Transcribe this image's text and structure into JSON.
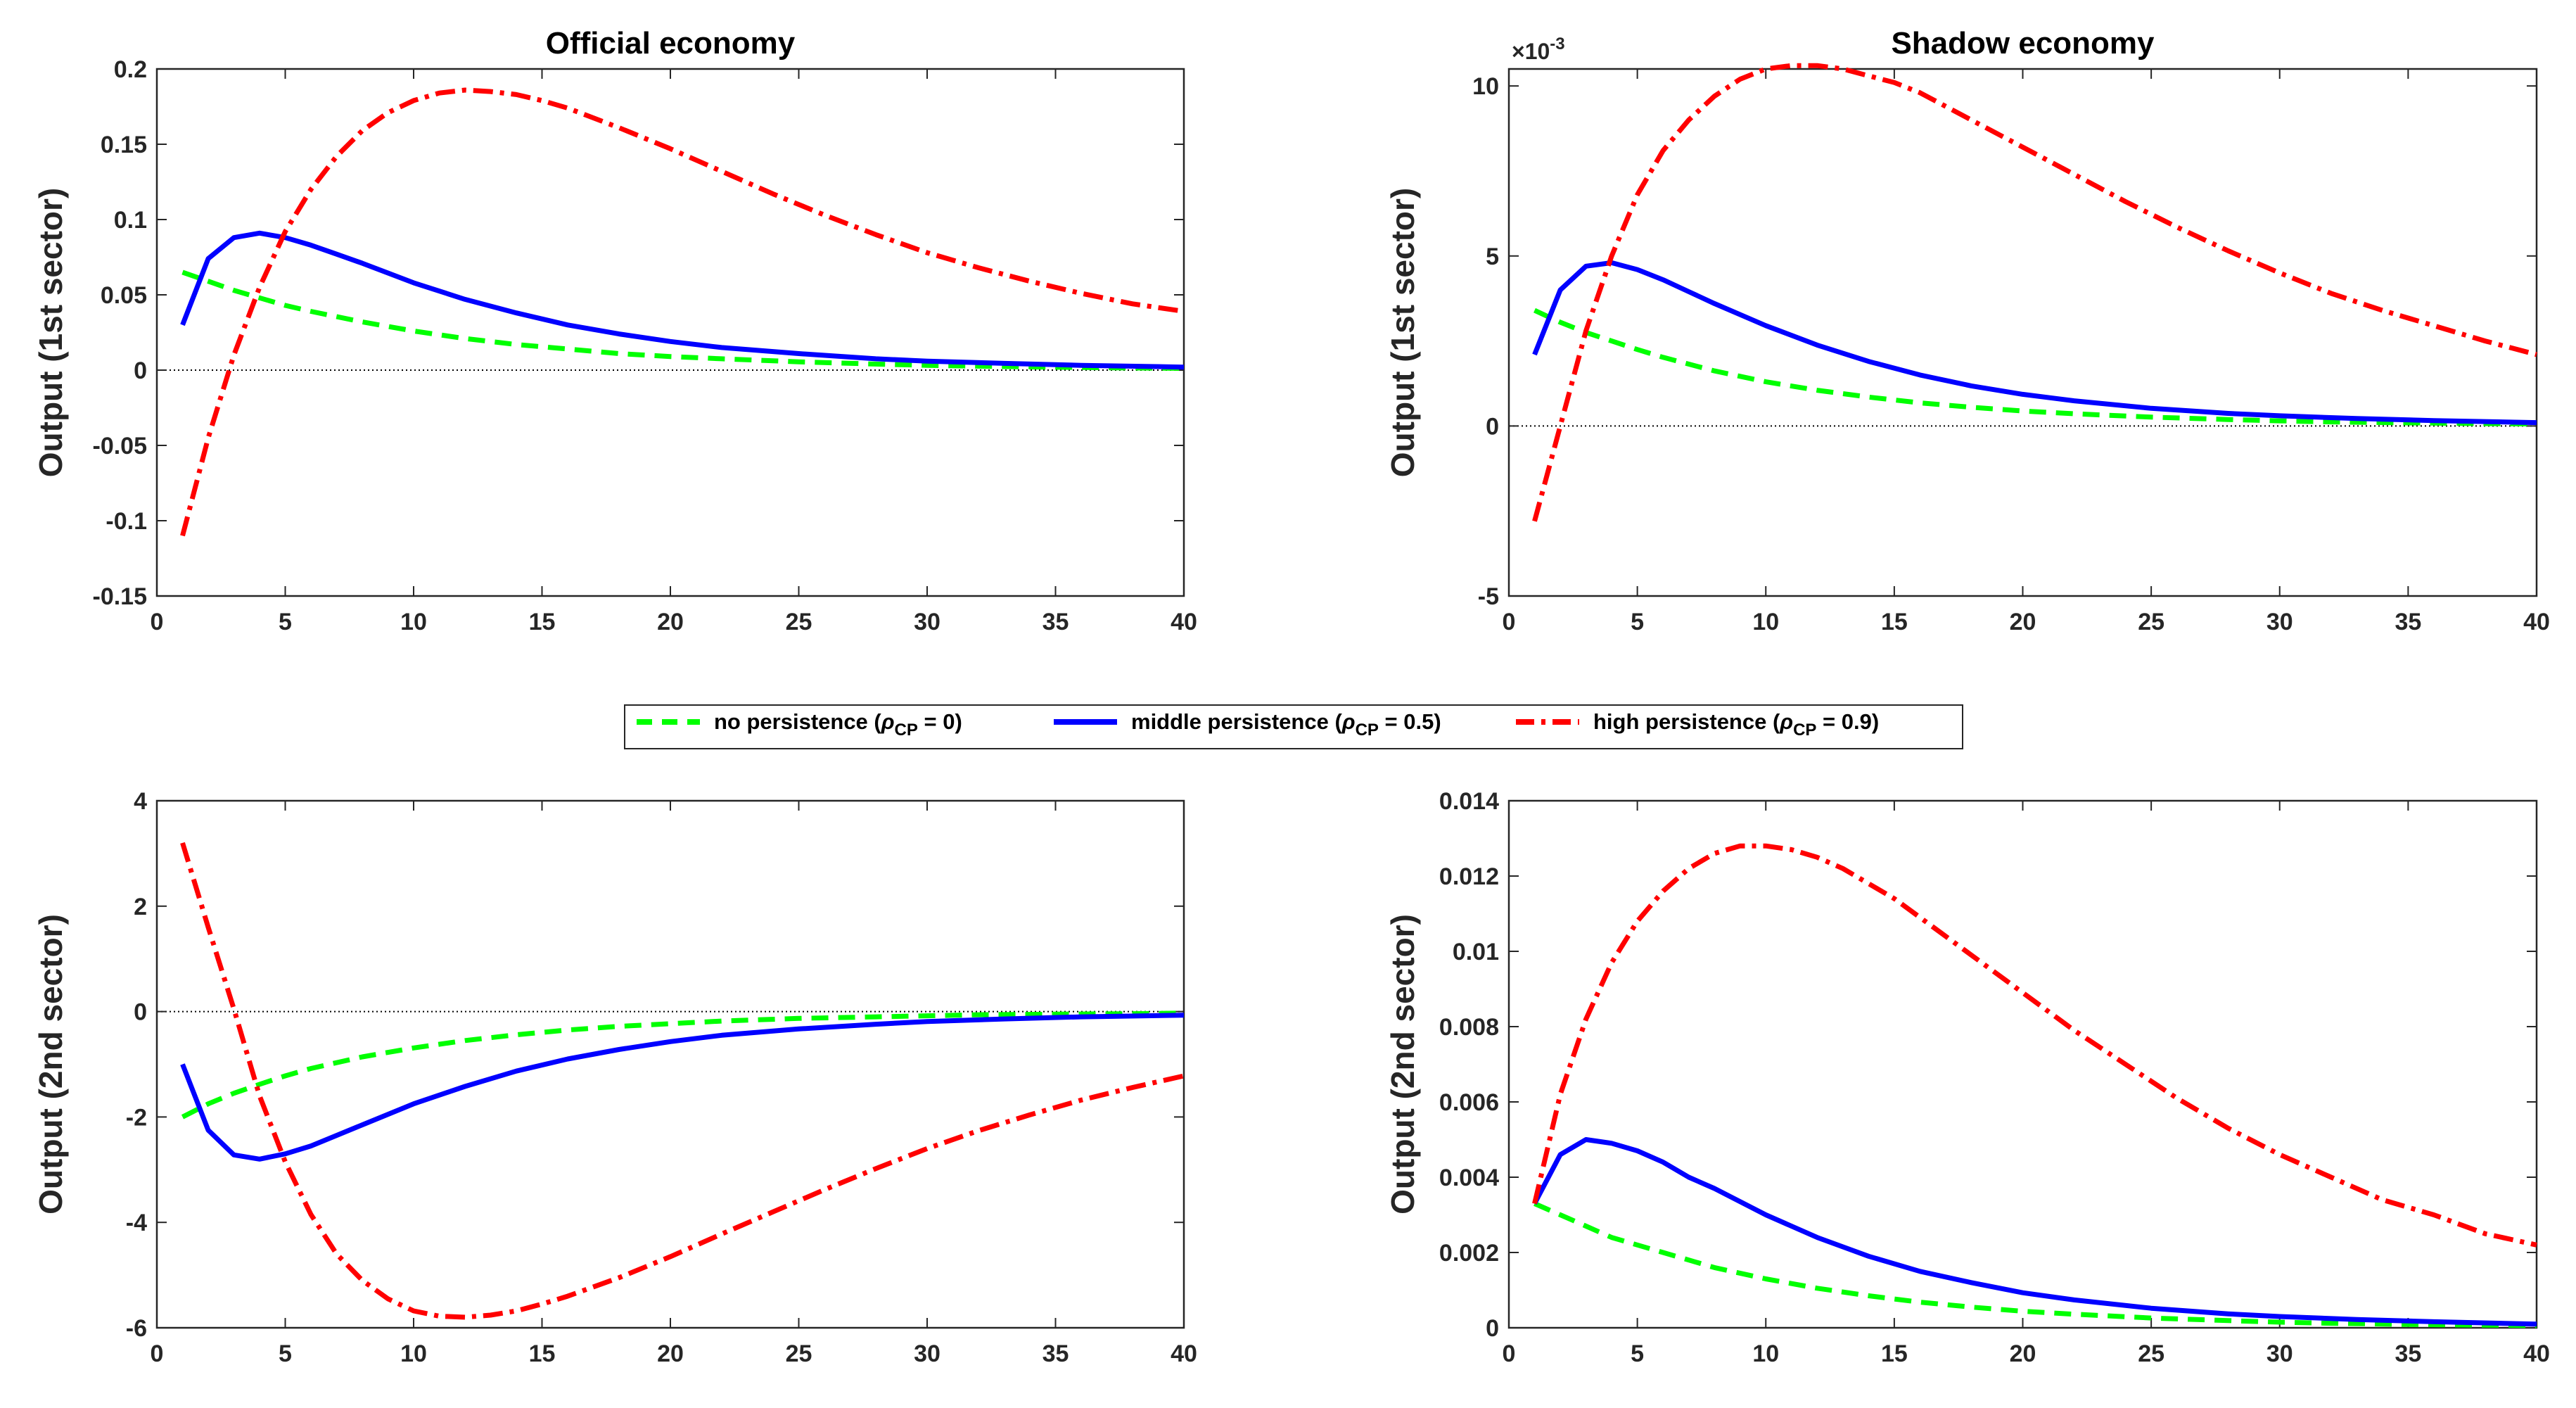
{
  "figure": {
    "legend": {
      "entries": [
        {
          "prefix": "no persistence (",
          "rho": "ρ",
          "sub": "CP",
          "suffix": " = 0)",
          "color": "#00ff00",
          "style": "dashed"
        },
        {
          "prefix": "middle persistence (",
          "rho": "ρ",
          "sub": "CP",
          "suffix": " = 0.5)",
          "color": "#0000ff",
          "style": "solid"
        },
        {
          "prefix": "high persistence (",
          "rho": "ρ",
          "sub": "CP",
          "suffix": " = 0.9)",
          "color": "#ff0000",
          "style": "dashdot"
        }
      ]
    }
  },
  "chart_data": [
    {
      "type": "line",
      "title": "Official economy",
      "ylabel": "Output (1st sector)",
      "xlim": [
        0,
        40
      ],
      "ylim": [
        -0.15,
        0.2
      ],
      "xticks": [
        0,
        5,
        10,
        15,
        20,
        25,
        30,
        35,
        40
      ],
      "xticklabels": [
        "0",
        "5",
        "10",
        "15",
        "20",
        "25",
        "30",
        "35",
        "40"
      ],
      "yticks": [
        -0.15,
        -0.1,
        -0.05,
        0,
        0.05,
        0.1,
        0.15,
        0.2
      ],
      "yticklabels": [
        "-0.15",
        "-0.1",
        "-0.05",
        "0",
        "0.05",
        "0.1",
        "0.15",
        "0.2"
      ],
      "exponent": "",
      "zero_line": true,
      "series": [
        {
          "name": "no persistence",
          "color": "#00ff00",
          "style": "dashed",
          "x": [
            1,
            2,
            3,
            4,
            5,
            6,
            8,
            10,
            12,
            14,
            16,
            18,
            20,
            22,
            25,
            28,
            30,
            32,
            35,
            38,
            40
          ],
          "values": [
            0.065,
            0.059,
            0.053,
            0.048,
            0.043,
            0.039,
            0.032,
            0.026,
            0.021,
            0.017,
            0.014,
            0.011,
            0.009,
            0.0075,
            0.0055,
            0.004,
            0.0032,
            0.0026,
            0.0019,
            0.0014,
            0.0012
          ]
        },
        {
          "name": "middle persistence",
          "color": "#0000ff",
          "style": "solid",
          "x": [
            1,
            2,
            3,
            4,
            5,
            6,
            7,
            8,
            10,
            12,
            14,
            16,
            18,
            20,
            22,
            25,
            28,
            30,
            33,
            36,
            40
          ],
          "values": [
            0.03,
            0.074,
            0.088,
            0.091,
            0.088,
            0.083,
            0.077,
            0.071,
            0.058,
            0.047,
            0.038,
            0.03,
            0.024,
            0.019,
            0.015,
            0.011,
            0.0075,
            0.006,
            0.0045,
            0.0032,
            0.002
          ]
        },
        {
          "name": "high persistence",
          "color": "#ff0000",
          "style": "dashdot",
          "x": [
            1,
            2,
            3,
            4,
            5,
            6,
            7,
            8,
            9,
            10,
            11,
            12,
            13,
            14,
            15,
            16,
            18,
            20,
            22,
            24,
            26,
            28,
            30,
            32,
            34,
            36,
            38,
            40
          ],
          "values": [
            -0.11,
            -0.045,
            0.01,
            0.055,
            0.092,
            0.12,
            0.142,
            0.159,
            0.171,
            0.179,
            0.184,
            0.186,
            0.185,
            0.183,
            0.179,
            0.174,
            0.161,
            0.147,
            0.132,
            0.117,
            0.103,
            0.09,
            0.078,
            0.068,
            0.059,
            0.051,
            0.044,
            0.039
          ]
        }
      ]
    },
    {
      "type": "line",
      "title": "Shadow economy",
      "ylabel": "Output (1st sector)",
      "xlim": [
        0,
        40
      ],
      "ylim": [
        -5,
        10.5
      ],
      "xticks": [
        0,
        5,
        10,
        15,
        20,
        25,
        30,
        35,
        40
      ],
      "xticklabels": [
        "0",
        "5",
        "10",
        "15",
        "20",
        "25",
        "30",
        "35",
        "40"
      ],
      "yticks": [
        -5,
        0,
        5,
        10
      ],
      "yticklabels": [
        "-5",
        "0",
        "5",
        "10"
      ],
      "exponent": "×10",
      "exponent_power": "-3",
      "zero_line": true,
      "series": [
        {
          "name": "no persistence",
          "color": "#00ff00",
          "style": "dashed",
          "x": [
            1,
            2,
            3,
            4,
            5,
            6,
            8,
            10,
            12,
            14,
            16,
            18,
            20,
            22,
            25,
            28,
            30,
            32,
            35,
            38,
            40
          ],
          "values": [
            3.4,
            3.05,
            2.75,
            2.5,
            2.25,
            2.02,
            1.62,
            1.3,
            1.05,
            0.85,
            0.68,
            0.55,
            0.44,
            0.36,
            0.26,
            0.19,
            0.15,
            0.12,
            0.09,
            0.07,
            0.06
          ]
        },
        {
          "name": "middle persistence",
          "color": "#0000ff",
          "style": "solid",
          "x": [
            1,
            2,
            3,
            4,
            5,
            6,
            7,
            8,
            10,
            12,
            14,
            16,
            18,
            20,
            22,
            25,
            28,
            30,
            33,
            36,
            40
          ],
          "values": [
            2.1,
            4.0,
            4.7,
            4.8,
            4.6,
            4.3,
            3.95,
            3.6,
            2.95,
            2.38,
            1.9,
            1.5,
            1.18,
            0.93,
            0.74,
            0.52,
            0.37,
            0.3,
            0.22,
            0.16,
            0.1
          ]
        },
        {
          "name": "high persistence",
          "color": "#ff0000",
          "style": "dashdot",
          "x": [
            1,
            2,
            3,
            4,
            5,
            6,
            7,
            8,
            9,
            10,
            11,
            12,
            13,
            14,
            15,
            16,
            18,
            20,
            22,
            24,
            26,
            28,
            30,
            32,
            34,
            36,
            38,
            40
          ],
          "values": [
            -2.8,
            0.0,
            2.8,
            5.0,
            6.8,
            8.1,
            9.0,
            9.7,
            10.2,
            10.5,
            10.6,
            10.6,
            10.5,
            10.3,
            10.1,
            9.8,
            9.0,
            8.2,
            7.4,
            6.6,
            5.85,
            5.15,
            4.5,
            3.9,
            3.4,
            2.95,
            2.5,
            2.1
          ]
        }
      ]
    },
    {
      "type": "line",
      "title": "",
      "ylabel": "Output (2nd sector)",
      "xlim": [
        0,
        40
      ],
      "ylim": [
        -6,
        4
      ],
      "xticks": [
        0,
        5,
        10,
        15,
        20,
        25,
        30,
        35,
        40
      ],
      "xticklabels": [
        "0",
        "5",
        "10",
        "15",
        "20",
        "25",
        "30",
        "35",
        "40"
      ],
      "yticks": [
        -6,
        -4,
        -2,
        0,
        2,
        4
      ],
      "yticklabels": [
        "-6",
        "-4",
        "-2",
        "0",
        "2",
        "4"
      ],
      "exponent": "",
      "zero_line": true,
      "series": [
        {
          "name": "no persistence",
          "color": "#00ff00",
          "style": "dashed",
          "x": [
            1,
            2,
            3,
            4,
            5,
            6,
            8,
            10,
            12,
            14,
            16,
            18,
            20,
            22,
            25,
            28,
            30,
            32,
            35,
            38,
            40
          ],
          "values": [
            -2.0,
            -1.75,
            -1.55,
            -1.38,
            -1.22,
            -1.08,
            -0.86,
            -0.69,
            -0.55,
            -0.44,
            -0.35,
            -0.28,
            -0.23,
            -0.18,
            -0.13,
            -0.1,
            -0.08,
            -0.06,
            -0.05,
            -0.04,
            -0.03
          ]
        },
        {
          "name": "middle persistence",
          "color": "#0000ff",
          "style": "solid",
          "x": [
            1,
            2,
            3,
            4,
            5,
            6,
            7,
            8,
            10,
            12,
            14,
            16,
            18,
            20,
            22,
            25,
            28,
            30,
            33,
            36,
            40
          ],
          "values": [
            -1.0,
            -2.25,
            -2.72,
            -2.8,
            -2.7,
            -2.55,
            -2.35,
            -2.15,
            -1.75,
            -1.42,
            -1.13,
            -0.9,
            -0.72,
            -0.57,
            -0.45,
            -0.33,
            -0.24,
            -0.19,
            -0.14,
            -0.1,
            -0.07
          ]
        },
        {
          "name": "high persistence",
          "color": "#ff0000",
          "style": "dashdot",
          "x": [
            1,
            2,
            3,
            4,
            5,
            6,
            7,
            8,
            9,
            10,
            11,
            12,
            13,
            14,
            15,
            16,
            18,
            20,
            22,
            24,
            26,
            28,
            30,
            32,
            34,
            36,
            38,
            40
          ],
          "values": [
            3.2,
            1.6,
            0.05,
            -1.6,
            -2.85,
            -3.85,
            -4.6,
            -5.1,
            -5.45,
            -5.68,
            -5.78,
            -5.8,
            -5.76,
            -5.68,
            -5.55,
            -5.4,
            -5.05,
            -4.65,
            -4.22,
            -3.8,
            -3.38,
            -2.98,
            -2.6,
            -2.26,
            -1.96,
            -1.68,
            -1.44,
            -1.22
          ]
        }
      ]
    },
    {
      "type": "line",
      "title": "",
      "ylabel": "Output (2nd sector)",
      "xlim": [
        0,
        40
      ],
      "ylim": [
        0,
        0.014
      ],
      "xticks": [
        0,
        5,
        10,
        15,
        20,
        25,
        30,
        35,
        40
      ],
      "xticklabels": [
        "0",
        "5",
        "10",
        "15",
        "20",
        "25",
        "30",
        "35",
        "40"
      ],
      "yticks": [
        0,
        0.002,
        0.004,
        0.006,
        0.008,
        0.01,
        0.012,
        0.014
      ],
      "yticklabels": [
        "0",
        "0.002",
        "0.004",
        "0.006",
        "0.008",
        "0.01",
        "0.012",
        "0.014"
      ],
      "exponent": "",
      "zero_line": false,
      "series": [
        {
          "name": "no persistence",
          "color": "#00ff00",
          "style": "dashed",
          "x": [
            1,
            2,
            3,
            4,
            5,
            6,
            8,
            10,
            12,
            14,
            16,
            18,
            20,
            22,
            25,
            28,
            30,
            32,
            35,
            38,
            40
          ],
          "values": [
            0.0033,
            0.003,
            0.0027,
            0.0024,
            0.0022,
            0.002,
            0.0016,
            0.0013,
            0.00105,
            0.00085,
            0.00068,
            0.00055,
            0.00044,
            0.00036,
            0.00026,
            0.00019,
            0.00015,
            0.00012,
            9e-05,
            7e-05,
            6e-05
          ]
        },
        {
          "name": "middle persistence",
          "color": "#0000ff",
          "style": "solid",
          "x": [
            1,
            2,
            3,
            4,
            5,
            6,
            7,
            8,
            10,
            12,
            14,
            16,
            18,
            20,
            22,
            25,
            28,
            30,
            33,
            36,
            40
          ],
          "values": [
            0.0033,
            0.0046,
            0.005,
            0.0049,
            0.0047,
            0.0044,
            0.004,
            0.0037,
            0.003,
            0.0024,
            0.0019,
            0.0015,
            0.0012,
            0.00093,
            0.00074,
            0.00052,
            0.00037,
            0.0003,
            0.00022,
            0.00016,
            0.0001
          ]
        },
        {
          "name": "high persistence",
          "color": "#ff0000",
          "style": "dashdot",
          "x": [
            1,
            2,
            3,
            4,
            5,
            6,
            7,
            8,
            9,
            10,
            11,
            12,
            13,
            14,
            15,
            16,
            18,
            20,
            22,
            24,
            26,
            28,
            30,
            32,
            34,
            36,
            38,
            40
          ],
          "values": [
            0.0033,
            0.0062,
            0.0082,
            0.0097,
            0.0108,
            0.0116,
            0.0122,
            0.0126,
            0.0128,
            0.0128,
            0.0127,
            0.0125,
            0.0122,
            0.0118,
            0.0114,
            0.0109,
            0.0099,
            0.0089,
            0.0079,
            0.007,
            0.0061,
            0.0053,
            0.0046,
            0.004,
            0.0034,
            0.003,
            0.0025,
            0.0022
          ]
        }
      ]
    }
  ]
}
